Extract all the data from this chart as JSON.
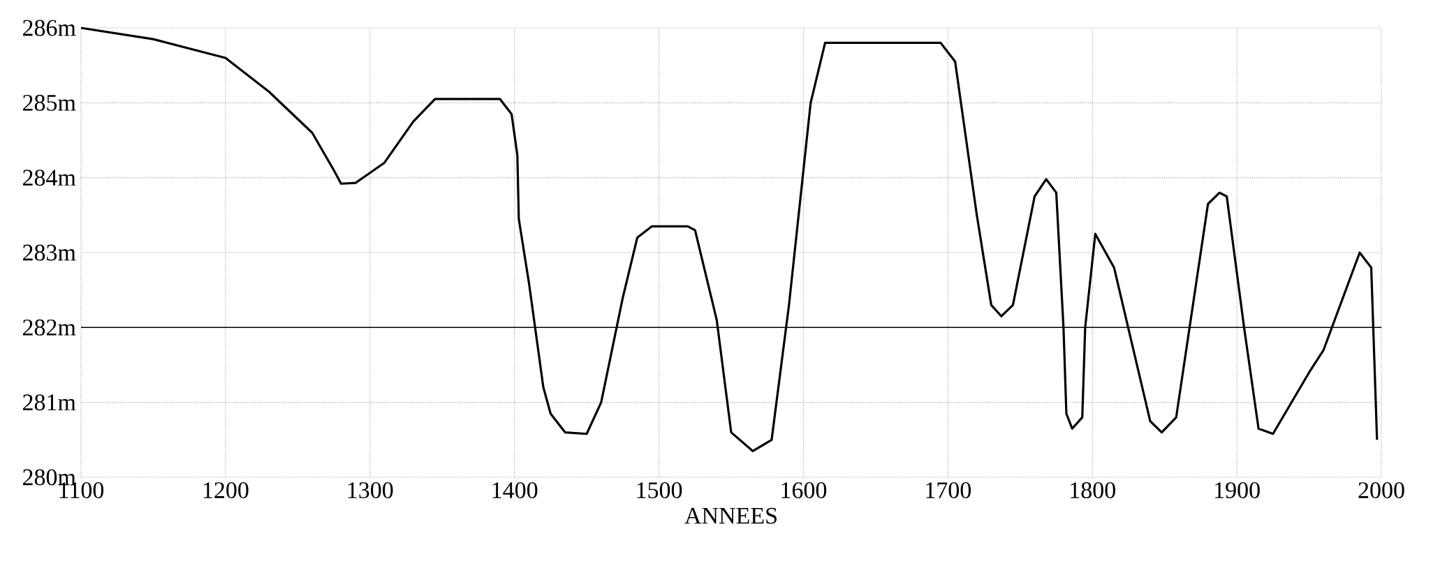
{
  "chart_data": {
    "type": "line",
    "xlabel": "ANNEES",
    "x": [
      1100,
      1150,
      1200,
      1230,
      1260,
      1275,
      1280,
      1290,
      1310,
      1330,
      1345,
      1390,
      1398,
      1402,
      1403,
      1410,
      1420,
      1425,
      1435,
      1450,
      1460,
      1475,
      1485,
      1495,
      1520,
      1525,
      1540,
      1550,
      1565,
      1578,
      1590,
      1605,
      1615,
      1695,
      1705,
      1720,
      1730,
      1737,
      1745,
      1760,
      1768,
      1775,
      1780,
      1782,
      1786,
      1793,
      1795,
      1802,
      1815,
      1840,
      1848,
      1858,
      1880,
      1888,
      1893,
      1905,
      1915,
      1925,
      1950,
      1960,
      1985,
      1993,
      1997
    ],
    "values": [
      286,
      285.85,
      285.6,
      285.15,
      284.6,
      284.1,
      283.92,
      283.93,
      284.2,
      284.75,
      285.05,
      285.05,
      284.85,
      284.3,
      283.45,
      282.6,
      281.2,
      280.85,
      280.6,
      280.58,
      281,
      282.4,
      283.2,
      283.35,
      283.35,
      283.3,
      282.1,
      280.6,
      280.35,
      280.5,
      282.3,
      285,
      285.8,
      285.8,
      285.55,
      283.5,
      282.3,
      282.15,
      282.3,
      283.75,
      283.98,
      283.8,
      282,
      280.85,
      280.65,
      280.8,
      282,
      283.25,
      282.8,
      280.75,
      280.6,
      280.8,
      283.65,
      283.8,
      283.75,
      282,
      280.65,
      280.58,
      281.4,
      281.7,
      283,
      282.8,
      280.5
    ],
    "color": "#000000",
    "xlim": [
      1100,
      2000
    ],
    "ylim": [
      280,
      286
    ],
    "xticks": [
      1100,
      1200,
      1300,
      1400,
      1500,
      1600,
      1700,
      1800,
      1900,
      2000
    ],
    "yticks": [
      {
        "value": 280,
        "label": "280m"
      },
      {
        "value": 281,
        "label": "281m"
      },
      {
        "value": 282,
        "label": "282m"
      },
      {
        "value": 283,
        "label": "283m"
      },
      {
        "value": 284,
        "label": "284m"
      },
      {
        "value": 285,
        "label": "285m"
      },
      {
        "value": 286,
        "label": "286m"
      }
    ],
    "grid": true,
    "ref_lines": [
      {
        "axis": "y",
        "value": 282,
        "color": "#000000"
      }
    ]
  }
}
